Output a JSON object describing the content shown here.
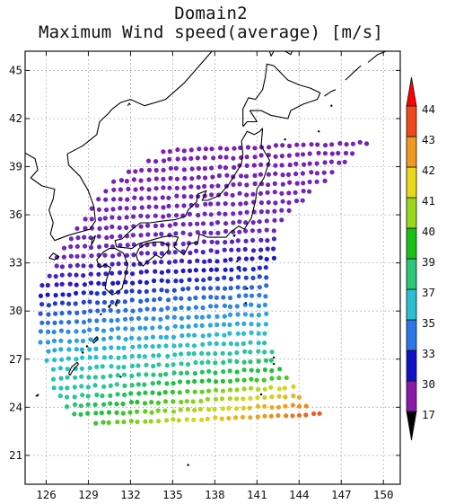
{
  "title_line1": "Domain2",
  "title_line2": "Maximum Wind speed(average) [m/s]",
  "map": {
    "lon_range": [
      124.5,
      151.2
    ],
    "lat_range": [
      19.2,
      46.2
    ],
    "lon_ticks": [
      126,
      129,
      132,
      135,
      138,
      141,
      144,
      147,
      150
    ],
    "lat_ticks": [
      21,
      24,
      27,
      30,
      33,
      36,
      39,
      42,
      45
    ],
    "grid": "dotted",
    "coastline_color": "#000000",
    "points": "scattered model grid points, colored by maximum wind speed"
  },
  "colorbar": {
    "labels": [
      "17",
      "30",
      "33",
      "35",
      "37",
      "39",
      "40",
      "41",
      "42",
      "43",
      "44"
    ],
    "colors": [
      "#000000",
      "#8a1aa8",
      "#1010c8",
      "#2a78e8",
      "#28c0d0",
      "#28c878",
      "#18c018",
      "#98d818",
      "#e8d818",
      "#f09820",
      "#f04818",
      "#ff0000"
    ],
    "orientation": "vertical",
    "placement": "right"
  }
}
